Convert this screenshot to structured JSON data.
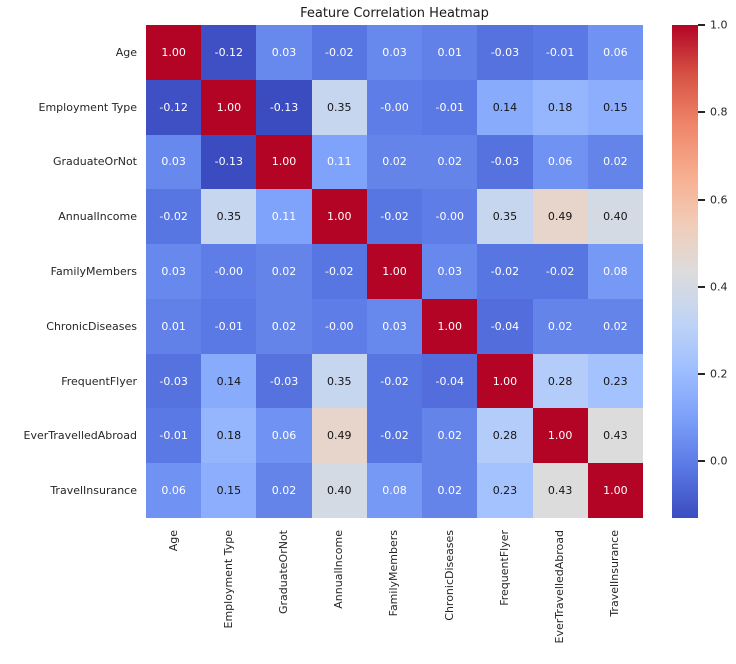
{
  "title": "Feature Correlation Heatmap",
  "chart_data": {
    "type": "heatmap",
    "title": "Feature Correlation Heatmap",
    "labels": [
      "Age",
      "Employment Type",
      "GraduateOrNot",
      "AnnualIncome",
      "FamilyMembers",
      "ChronicDiseases",
      "FrequentFlyer",
      "EverTravelledAbroad",
      "TravelInsurance"
    ],
    "matrix": [
      [
        "1.00",
        "-0.12",
        "0.03",
        "-0.02",
        "0.03",
        "0.01",
        "-0.03",
        "-0.01",
        "0.06"
      ],
      [
        "-0.12",
        "1.00",
        "-0.13",
        "0.35",
        "-0.00",
        "-0.01",
        "0.14",
        "0.18",
        "0.15"
      ],
      [
        "0.03",
        "-0.13",
        "1.00",
        "0.11",
        "0.02",
        "0.02",
        "-0.03",
        "0.06",
        "0.02"
      ],
      [
        "-0.02",
        "0.35",
        "0.11",
        "1.00",
        "-0.02",
        "-0.00",
        "0.35",
        "0.49",
        "0.40"
      ],
      [
        "0.03",
        "-0.00",
        "0.02",
        "-0.02",
        "1.00",
        "0.03",
        "-0.02",
        "-0.02",
        "0.08"
      ],
      [
        "0.01",
        "-0.01",
        "0.02",
        "-0.00",
        "0.03",
        "1.00",
        "-0.04",
        "0.02",
        "0.02"
      ],
      [
        "-0.03",
        "0.14",
        "-0.03",
        "0.35",
        "-0.02",
        "-0.04",
        "1.00",
        "0.28",
        "0.23"
      ],
      [
        "-0.01",
        "0.18",
        "0.06",
        "0.49",
        "-0.02",
        "0.02",
        "0.28",
        "1.00",
        "0.43"
      ],
      [
        "0.06",
        "0.15",
        "0.02",
        "0.40",
        "0.08",
        "0.02",
        "0.23",
        "0.43",
        "1.00"
      ]
    ],
    "colormap": "coolwarm",
    "vmin": -0.13,
    "vmax": 1.0,
    "colorbar_ticks": [
      1.0,
      0.8,
      0.6,
      0.4,
      0.2,
      0.0
    ],
    "colorbar_tick_labels": [
      "1.0",
      "0.8",
      "0.6",
      "0.4",
      "0.2",
      "0.0"
    ],
    "legend_position": "right",
    "grid": false,
    "annotation_text_colors": {
      "light_cells": "#151515",
      "dark_cells": "#ffffff"
    },
    "accent_colors": {
      "max_red": "#b40426",
      "min_blue": "#3b4cc0",
      "mid_gray": "#dddcdc"
    }
  }
}
